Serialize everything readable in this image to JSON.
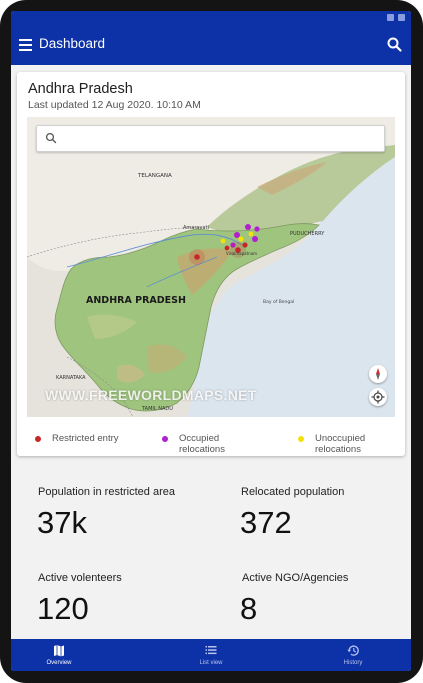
{
  "app_bar": {
    "title": "Dashboard"
  },
  "region_card": {
    "title": "Andhra Pradesh",
    "last_updated": "Last updated 12 Aug 2020. 10:10 AM"
  },
  "map": {
    "search_placeholder": "",
    "labels": {
      "telangana": "TELANGANA",
      "amaravati": "Amaravati",
      "state": "ANDHRA PRADESH",
      "puducherry": "PUDUCHERRY",
      "bay": "Bay of Bengal",
      "karnataka": "KARNATAKA",
      "tamil_nadu": "TAMIL NADU",
      "visakhapatnam": "Visakhapatnam"
    },
    "watermark": "WWW.FREEWORLDMAPS.NET",
    "markers": [
      {
        "type": "restricted",
        "color": "#c62828"
      },
      {
        "type": "occupied",
        "color": "#b21fd1"
      },
      {
        "type": "unoccupied",
        "color": "#f5e10a"
      }
    ]
  },
  "legend": {
    "restricted": {
      "label": "Restricted entry",
      "color": "#c62828"
    },
    "occupied": {
      "label": "Occupied relocations",
      "color": "#b21fd1"
    },
    "unoccupied": {
      "label": "Unoccupied relocations",
      "color": "#f5e10a"
    }
  },
  "stats": {
    "population_restricted": {
      "label": "Population in restricted area",
      "value": "37k"
    },
    "relocated_population": {
      "label": "Relocated population",
      "value": "372"
    },
    "active_volunteers": {
      "label": "Active volenteers",
      "value": "120"
    },
    "active_ngo": {
      "label": "Active NGO/Agencies",
      "value": "8"
    }
  },
  "bottom_nav": {
    "overview": "Overview",
    "list_view": "List view",
    "history": "History"
  },
  "colors": {
    "primary": "#0d31a7",
    "nav_active": "#ffffff",
    "nav_inactive": "#b9c4ec"
  }
}
